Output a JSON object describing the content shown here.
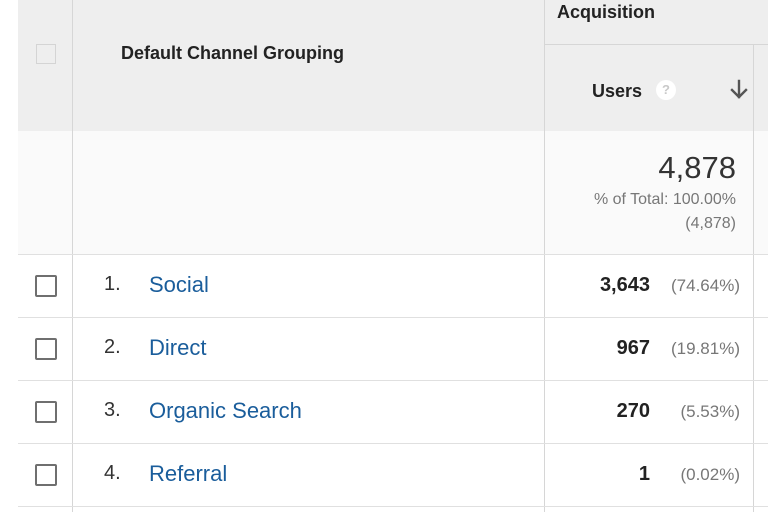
{
  "header": {
    "dimension_label": "Default Channel Grouping",
    "group_label": "Acquisition",
    "metric_label": "Users",
    "help_icon_glyph": "?"
  },
  "totals": {
    "value": "4,878",
    "pct_of_total": "% of Total: 100.00%",
    "total_paren": "(4,878)"
  },
  "rows": [
    {
      "index": "1.",
      "channel": "Social",
      "users": "3,643",
      "pct": "(74.64%)"
    },
    {
      "index": "2.",
      "channel": "Direct",
      "users": "967",
      "pct": "(19.81%)"
    },
    {
      "index": "3.",
      "channel": "Organic Search",
      "users": "270",
      "pct": "(5.53%)"
    },
    {
      "index": "4.",
      "channel": "Referral",
      "users": "1",
      "pct": "(0.02%)"
    }
  ],
  "colors": {
    "link": "#1a5d9b",
    "header_bg": "#eeeeee",
    "muted_text": "#777777"
  },
  "icons": {
    "sort": "arrow-down-icon",
    "help": "help-icon",
    "checkbox": "checkbox-icon"
  }
}
